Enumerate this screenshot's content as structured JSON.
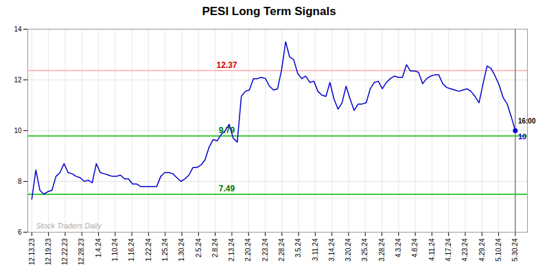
{
  "chart_data": {
    "type": "line",
    "title": "PESI Long Term Signals",
    "color": "#0000cc",
    "grid": true,
    "x": [
      0,
      1,
      2,
      3,
      4,
      5,
      6,
      7,
      8,
      9,
      10,
      11,
      12,
      13,
      14,
      15,
      16,
      17,
      18,
      19,
      20,
      21,
      22,
      23,
      24,
      25,
      26,
      27,
      28,
      29,
      30,
      31,
      32,
      33,
      34,
      35,
      36,
      37,
      38,
      39,
      40,
      41,
      42,
      43,
      44,
      45,
      46,
      47,
      48,
      49,
      50,
      51,
      52,
      53,
      54,
      55,
      56,
      57,
      58,
      59,
      60,
      61,
      62,
      63,
      64,
      65,
      66,
      67,
      68,
      69,
      70,
      71,
      72,
      73,
      74,
      75,
      76,
      77,
      78,
      79,
      80,
      81,
      82,
      83,
      84,
      85,
      86,
      87,
      88,
      89,
      90,
      91,
      92,
      93,
      94,
      95,
      96,
      97,
      98,
      99,
      100,
      101,
      102,
      103,
      104,
      105,
      106,
      107,
      108,
      109,
      110,
      111,
      112,
      113,
      114,
      115,
      116,
      117,
      118,
      119,
      120
    ],
    "values": [
      7.3,
      8.45,
      7.65,
      7.5,
      7.6,
      7.65,
      8.2,
      8.35,
      8.7,
      8.35,
      8.3,
      8.2,
      8.15,
      8.0,
      8.05,
      7.95,
      8.7,
      8.35,
      8.3,
      8.25,
      8.2,
      8.2,
      8.25,
      8.1,
      8.1,
      7.9,
      7.9,
      7.8,
      7.8,
      7.8,
      7.8,
      7.8,
      8.2,
      8.35,
      8.35,
      8.3,
      8.15,
      8.0,
      8.1,
      8.25,
      8.55,
      8.55,
      8.65,
      8.85,
      9.35,
      9.65,
      9.6,
      9.85,
      10.0,
      10.25,
      9.7,
      9.55,
      11.35,
      11.55,
      11.6,
      12.05,
      12.05,
      12.1,
      12.05,
      11.75,
      11.6,
      11.65,
      12.4,
      13.5,
      12.9,
      12.8,
      12.25,
      12.05,
      12.15,
      11.9,
      11.95,
      11.55,
      11.4,
      11.35,
      11.9,
      11.25,
      10.85,
      11.1,
      11.75,
      11.25,
      10.8,
      11.05,
      11.05,
      11.1,
      11.65,
      11.9,
      11.95,
      11.65,
      11.9,
      12.05,
      12.15,
      12.1,
      12.1,
      12.6,
      12.35,
      12.35,
      12.3,
      11.85,
      12.05,
      12.15,
      12.2,
      12.2,
      11.85,
      11.7,
      11.65,
      11.6,
      11.55,
      11.6,
      11.65,
      11.55,
      11.35,
      11.1,
      11.85,
      12.55,
      12.45,
      12.15,
      11.8,
      11.3,
      11.05,
      10.55,
      10.0
    ],
    "xlim": [
      -1,
      123
    ],
    "xticks": [
      {
        "value": 0,
        "label": "12.13.23"
      },
      {
        "value": 4.137931034482759,
        "label": "12.19.23"
      },
      {
        "value": 8.275862068965518,
        "label": "12.22.23"
      },
      {
        "value": 12.413793103448276,
        "label": "12.28.23"
      },
      {
        "value": 16.551724137931036,
        "label": "1.4.24"
      },
      {
        "value": 20.689655172413794,
        "label": "1.10.24"
      },
      {
        "value": 24.82758620689655,
        "label": "1.16.24"
      },
      {
        "value": 28.96551724137931,
        "label": "1.22.24"
      },
      {
        "value": 33.10344827586207,
        "label": "1.25.24"
      },
      {
        "value": 37.241379310344826,
        "label": "1.30.24"
      },
      {
        "value": 41.37931034482759,
        "label": "2.5.24"
      },
      {
        "value": 45.51724137931034,
        "label": "2.8.24"
      },
      {
        "value": 49.6551724137931,
        "label": "2.13.24"
      },
      {
        "value": 53.793103448275865,
        "label": "2.20.24"
      },
      {
        "value": 57.93103448275862,
        "label": "2.23.24"
      },
      {
        "value": 62.06896551724138,
        "label": "2.28.24"
      },
      {
        "value": 66.20689655172414,
        "label": "3.5.24"
      },
      {
        "value": 70.34482758620689,
        "label": "3.11.24"
      },
      {
        "value": 74.48275862068965,
        "label": "3.14.24"
      },
      {
        "value": 78.62068965517241,
        "label": "3.20.24"
      },
      {
        "value": 82.75862068965517,
        "label": "3.25.24"
      },
      {
        "value": 86.89655172413794,
        "label": "3.28.24"
      },
      {
        "value": 91.03448275862068,
        "label": "4.3.24"
      },
      {
        "value": 95.17241379310344,
        "label": "4.8.24"
      },
      {
        "value": 99.3103448275862,
        "label": "4.11.24"
      },
      {
        "value": 103.44827586206897,
        "label": "4.17.24"
      },
      {
        "value": 107.58620689655173,
        "label": "4.23.24"
      },
      {
        "value": 111.72413793103448,
        "label": "4.29.24"
      },
      {
        "value": 115.86206896551724,
        "label": "5.10.24"
      },
      {
        "value": 120,
        "label": "5.30.24"
      }
    ],
    "ylim": [
      6,
      14
    ],
    "yticks": [
      6,
      8,
      10,
      12,
      14
    ],
    "reference_lines": [
      {
        "value": 12.37,
        "label": "12.37",
        "color": "#ffaaaa",
        "label_color": "#cc0000"
      },
      {
        "value": 9.79,
        "label": "9.79",
        "color": "#00bb00",
        "label_color": "#007700"
      },
      {
        "value": 7.49,
        "label": "7.49",
        "color": "#00bb00",
        "label_color": "#007700"
      }
    ],
    "end_dot_color": "#0000cc",
    "end_line_color": "#808080",
    "annotations": [
      {
        "text": "16:00",
        "color": "#000000"
      },
      {
        "text": "10",
        "color": "#0000cc"
      },
      {
        "text": "Stock Traders Daily",
        "color": "#aaaaaa"
      }
    ]
  }
}
